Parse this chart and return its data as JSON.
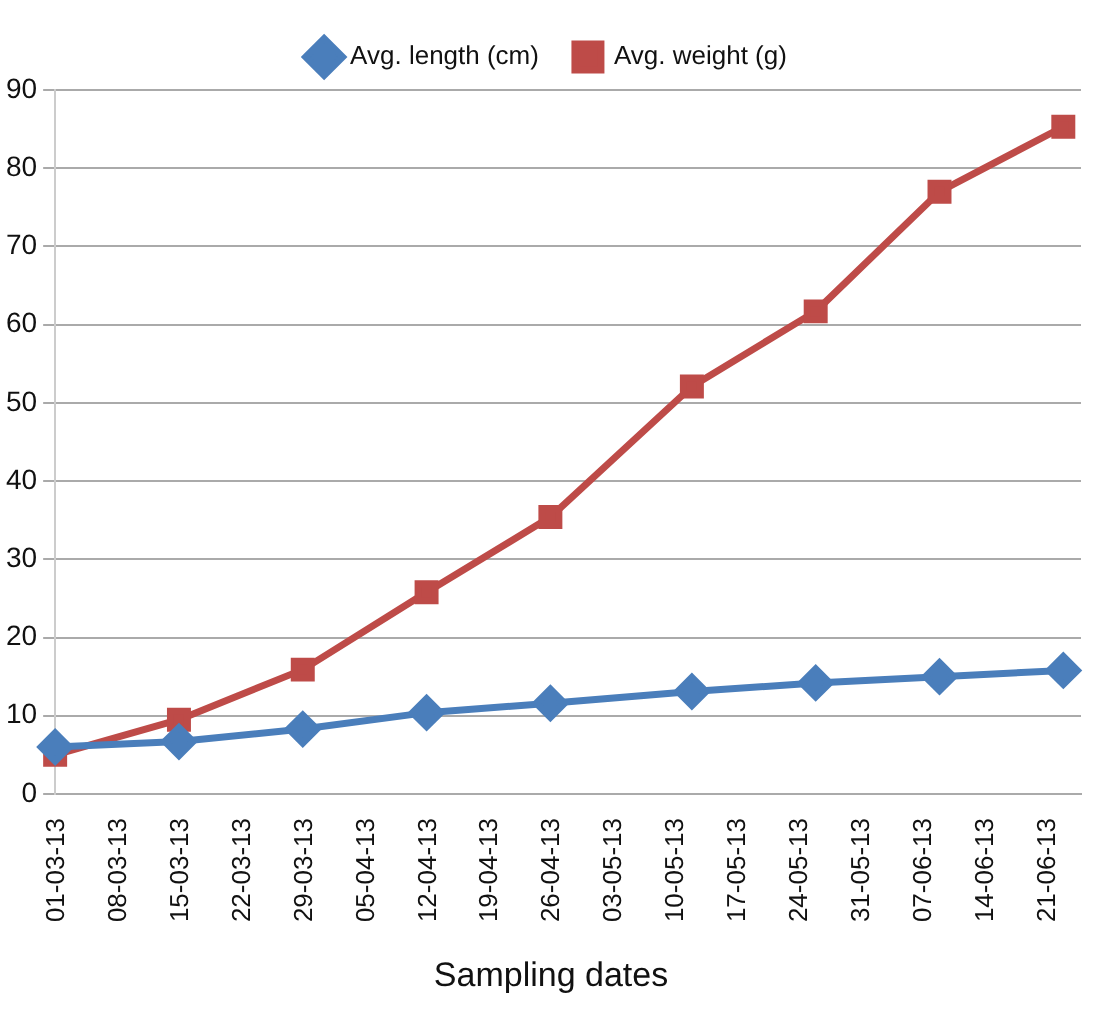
{
  "chart_data": {
    "type": "line",
    "xlabel": "Sampling dates",
    "x": [
      "--03-01",
      "--03-15",
      "--03-29",
      "--04-12",
      "--04-26",
      "--05-12",
      "--05-26",
      "--06-09",
      "--06-23"
    ],
    "series": [
      {
        "name": "Avg. length (cm)",
        "color": "#4a7ebb",
        "marker": "diamond",
        "values": [
          6,
          6.7,
          8.3,
          10.4,
          11.6,
          13.1,
          14.2,
          15,
          15.8
        ]
      },
      {
        "name": "Avg. weight (g)",
        "color": "#be4b48",
        "marker": "square",
        "values": [
          5,
          9.5,
          15.9,
          25.8,
          35.4,
          52.1,
          61.7,
          77,
          85.3
        ]
      }
    ],
    "xlim": [
      "--03-01",
      "--06-25"
    ],
    "xticks": [
      {
        "value": "--03-01",
        "label": "01-03-13"
      },
      {
        "value": "--03-08",
        "label": "08-03-13"
      },
      {
        "value": "--03-15",
        "label": "15-03-13"
      },
      {
        "value": "--03-22",
        "label": "22-03-13"
      },
      {
        "value": "--03-29",
        "label": "29-03-13"
      },
      {
        "value": "--04-05",
        "label": "05-04-13"
      },
      {
        "value": "--04-12",
        "label": "12-04-13"
      },
      {
        "value": "--04-19",
        "label": "19-04-13"
      },
      {
        "value": "--04-26",
        "label": "26-04-13"
      },
      {
        "value": "--05-03",
        "label": "03-05-13"
      },
      {
        "value": "--05-10",
        "label": "10-05-13"
      },
      {
        "value": "--05-17",
        "label": "17-05-13"
      },
      {
        "value": "--05-24",
        "label": "24-05-13"
      },
      {
        "value": "--05-31",
        "label": "31-05-13"
      },
      {
        "value": "--06-07",
        "label": "07-06-13"
      },
      {
        "value": "--06-14",
        "label": "14-06-13"
      },
      {
        "value": "--06-21",
        "label": "21-06-13"
      }
    ],
    "ylim": [
      0,
      90
    ],
    "yticks": [
      0,
      10,
      20,
      30,
      40,
      50,
      60,
      70,
      80,
      90
    ],
    "grid": "y",
    "legend": "top",
    "line_style": "solid"
  }
}
